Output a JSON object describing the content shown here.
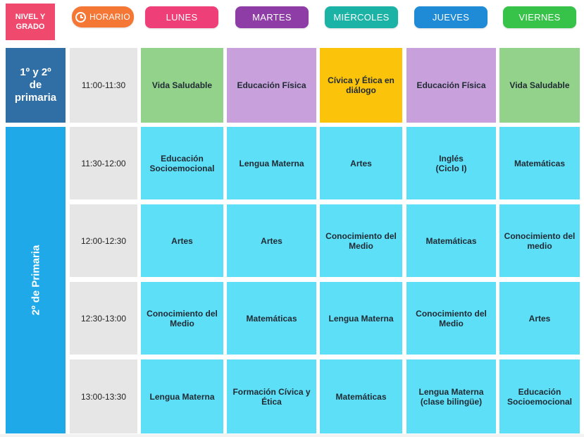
{
  "header": {
    "nivel_label": "NIVEL Y\nGRADO",
    "horario_label": "HORARIO",
    "days": [
      {
        "label": "LUNES",
        "color": "#ef3f78"
      },
      {
        "label": "MARTES",
        "color": "#8e3da6"
      },
      {
        "label": "MIÉRCOLES",
        "color": "#1ab3a6"
      },
      {
        "label": "JUEVES",
        "color": "#1f8ad6"
      },
      {
        "label": "VIERNES",
        "color": "#37c24a"
      }
    ],
    "nivel_color": "#ef4a6d",
    "horario_color": "#f57736"
  },
  "grades": {
    "top_label": "1º y 2º\nde\nprimaria",
    "side_label": "2º de Primaria"
  },
  "rows": [
    {
      "time": "11:00-11:30",
      "cells": [
        "Vida Saludable",
        "Educación Física",
        "Cívica y Ética en\ndiálogo",
        "Educación Física",
        "Vida Saludable"
      ],
      "colors": [
        "green",
        "purple",
        "yellow",
        "purple",
        "green"
      ]
    },
    {
      "time": "11:30-12:00",
      "cells": [
        "Educación\nSocioemocional",
        "Lengua Materna",
        "Artes",
        "Inglés\n(Ciclo I)",
        "Matemáticas"
      ],
      "colors": [
        "cyan",
        "cyan",
        "cyan",
        "cyan",
        "cyan"
      ]
    },
    {
      "time": "12:00-12:30",
      "cells": [
        "Artes",
        "Artes",
        "Conocimiento del\nMedio",
        "Matemáticas",
        "Conocimiento del\nmedio"
      ],
      "colors": [
        "cyan",
        "cyan",
        "cyan",
        "cyan",
        "cyan"
      ]
    },
    {
      "time": "12:30-13:00",
      "cells": [
        "Conocimiento del\nMedio",
        "Matemáticas",
        "Lengua Materna",
        "Conocimiento del\nMedio",
        "Artes"
      ],
      "colors": [
        "cyan",
        "cyan",
        "cyan",
        "cyan",
        "cyan"
      ]
    },
    {
      "time": "13:00-13:30",
      "cells": [
        "Lengua Materna",
        "Formación Cívica y\nÉtica",
        "Matemáticas",
        "Lengua Materna\n(clase bilingüe)",
        "Educación\nSocioemocional"
      ],
      "colors": [
        "cyan",
        "cyan",
        "cyan",
        "cyan",
        "cyan"
      ]
    }
  ]
}
